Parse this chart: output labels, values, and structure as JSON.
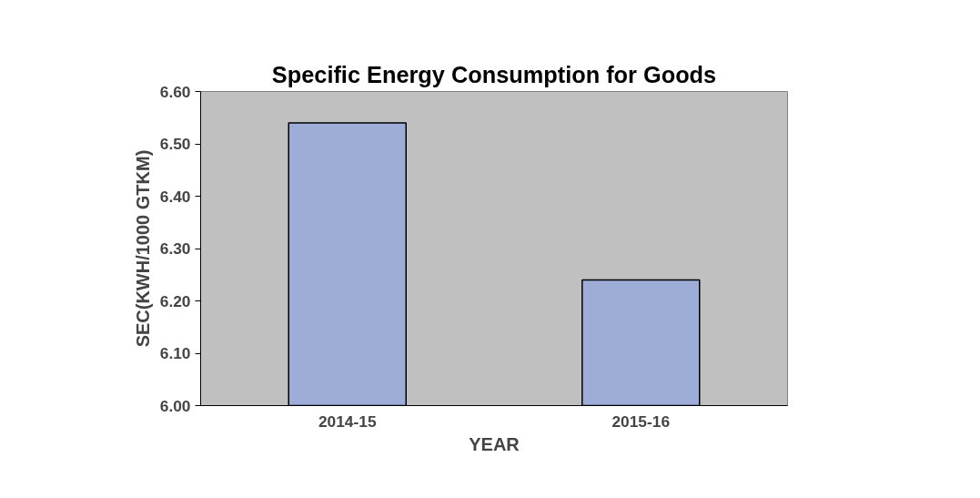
{
  "chart_data": {
    "type": "bar",
    "title": "Specific Energy Consumption for Goods",
    "xlabel": "YEAR",
    "ylabel": "SEC(KWH/1000 GTKM)",
    "categories": [
      "2014-15",
      "2015-16"
    ],
    "values": [
      6.54,
      6.24
    ],
    "color": "#9eacd8",
    "ylim": [
      6.0,
      6.6
    ],
    "yticks": [
      {
        "value": 6.0,
        "label": "6.00"
      },
      {
        "value": 6.1,
        "label": "6.10"
      },
      {
        "value": 6.2,
        "label": "6.20"
      },
      {
        "value": 6.3,
        "label": "6.30"
      },
      {
        "value": 6.4,
        "label": "6.40"
      },
      {
        "value": 6.5,
        "label": "6.50"
      },
      {
        "value": 6.6,
        "label": "6.60"
      }
    ],
    "grid": false
  }
}
